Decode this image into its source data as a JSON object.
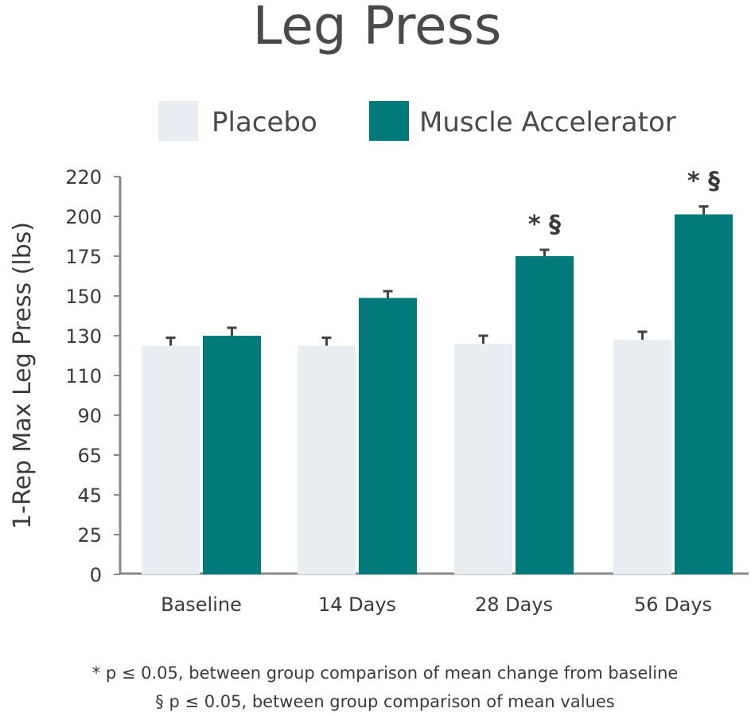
{
  "chart_data": {
    "type": "bar",
    "title": "Leg Press",
    "ylabel": "1-Rep Max Leg Press (lbs)",
    "xlabel": "",
    "yticks": [
      0,
      25,
      45,
      65,
      90,
      110,
      130,
      150,
      175,
      200,
      220
    ],
    "ylim": [
      0,
      220
    ],
    "grid": false,
    "legend_position": "top",
    "categories": [
      "Baseline",
      "14 Days",
      "28 Days",
      "56 Days"
    ],
    "series": [
      {
        "name": "Placebo",
        "color": "#e9eef2",
        "values": [
          125,
          125,
          126,
          128
        ],
        "errors": [
          4,
          4,
          4,
          4
        ]
      },
      {
        "name": "Muscle Accelerator",
        "color": "#007a7a",
        "values": [
          130,
          149,
          175,
          201
        ],
        "errors": [
          4,
          4,
          4,
          4
        ]
      }
    ],
    "annotations": [
      {
        "category": "28 Days",
        "series": "Muscle Accelerator",
        "text": "* §"
      },
      {
        "category": "56 Days",
        "series": "Muscle Accelerator",
        "text": "* §"
      }
    ],
    "footnotes": [
      "* p ≤ 0.05, between group comparison of mean change from baseline",
      "§ p ≤ 0.05, between group comparison of mean values"
    ]
  }
}
